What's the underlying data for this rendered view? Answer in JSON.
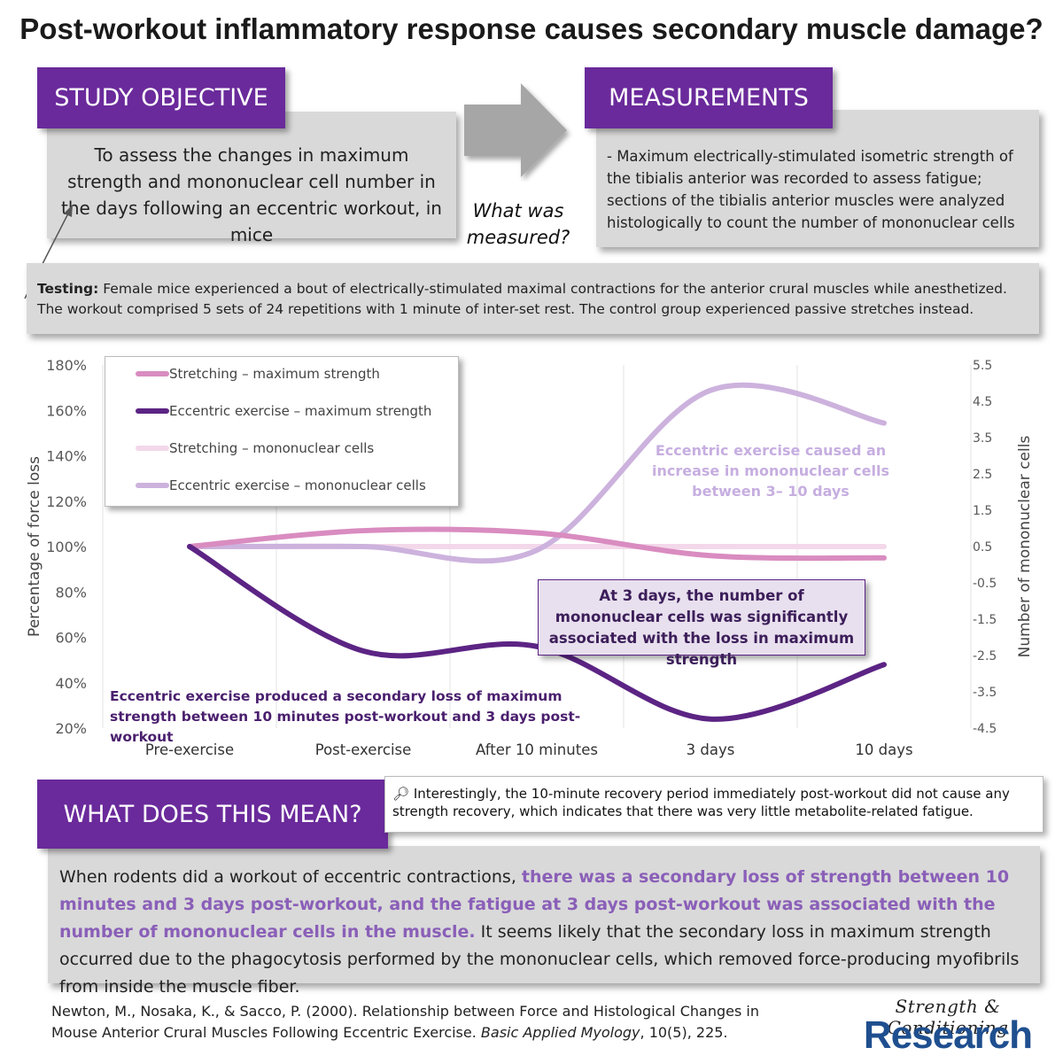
{
  "title": "Post-workout inflammatory response causes secondary muscle damage?",
  "objective": {
    "heading": "STUDY OBJECTIVE",
    "text": "To assess the changes in maximum strength and mononuclear cell number in the days following an eccentric workout, in mice"
  },
  "arrow_question": "What was measured?",
  "measurements": {
    "heading": "MEASUREMENTS",
    "text": "- Maximum electrically-stimulated isometric strength of the tibialis anterior was recorded to assess fatigue; sections of the tibialis anterior muscles were analyzed histologically to count the number of mononuclear cells"
  },
  "testing": {
    "label": "Testing:",
    "text": " Female mice experienced a bout of electrically-stimulated maximal contractions for the anterior crural muscles while anesthetized. The workout comprised 5 sets of 24 repetitions with 1 minute of inter-set rest. The control group experienced passive stretches instead."
  },
  "chart_data": {
    "type": "line",
    "categories": [
      "Pre-exercise",
      "Post-exercise",
      "After 10 minutes",
      "3 days",
      "10 days"
    ],
    "ylabel": "Percentage of force loss",
    "y2label": "Number of mononuclear cells",
    "ylim": [
      0.2,
      1.8
    ],
    "y_ticks": [
      "20%",
      "40%",
      "60%",
      "80%",
      "100%",
      "120%",
      "140%",
      "160%",
      "180%"
    ],
    "y2lim": [
      -4.5,
      5.5
    ],
    "y2_ticks": [
      "-4.5",
      "-3.5",
      "-2.5",
      "-1.5",
      "-0.5",
      "0.5",
      "1.5",
      "2.5",
      "3.5",
      "4.5",
      "5.5"
    ],
    "grid": true,
    "legend_position": "top-left",
    "series": [
      {
        "name": "Stretching – maximum strength",
        "axis": "left",
        "color": "#d98cc0",
        "values": [
          1.0,
          1.07,
          1.06,
          0.96,
          0.95
        ]
      },
      {
        "name": "Eccentric exercise – maximum strength",
        "axis": "left",
        "color": "#5c2484",
        "values": [
          1.0,
          0.54,
          0.56,
          0.24,
          0.48
        ]
      },
      {
        "name": "Stretching – mononuclear cells",
        "axis": "right",
        "color": "#f3d8ea",
        "values": [
          0.5,
          0.5,
          0.5,
          0.5,
          0.5
        ]
      },
      {
        "name": "Eccentric exercise – mononuclear cells",
        "axis": "right",
        "color": "#ccb2dd",
        "values": [
          0.5,
          0.5,
          0.4,
          4.8,
          3.9
        ]
      }
    ],
    "annotations": [
      "Eccentric exercise caused an increase in mononuclear cells between 3– 10 days",
      "At 3 days, the number of mononuclear cells was significantly associated with the loss in maximum strength",
      "Eccentric exercise produced a secondary loss of maximum strength between 10 minutes post-workout and 3 days post-workout"
    ]
  },
  "meaning": {
    "heading": "WHAT DOES THIS MEAN?",
    "note": "Interestingly, the 10-minute recovery period immediately post-workout did not cause any strength recovery, which indicates that there was very little metabolite-related fatigue.",
    "text_start": "When rodents did a workout of eccentric contractions, ",
    "text_highlight": "there was a secondary loss of strength between 10 minutes and 3 days post-workout, and the fatigue at 3 days post-workout was associated with the number of mononuclear cells in the muscle.",
    "text_end": " It seems likely that the secondary loss in maximum strength occurred due to the phagocytosis performed by the mononuclear cells, which removed force-producing myofibrils from inside the muscle fiber."
  },
  "reference": {
    "text1": "Newton, M., Nosaka, K., & Sacco, P. (2000). Relationship between Force and Histological Changes in Mouse Anterior Crural Muscles Following Eccentric Exercise. ",
    "journal": "Basic Applied Myology",
    "text2": ", 10(5), 225."
  },
  "logo": {
    "line1": "Strength & Conditioning",
    "line2": "Research"
  }
}
